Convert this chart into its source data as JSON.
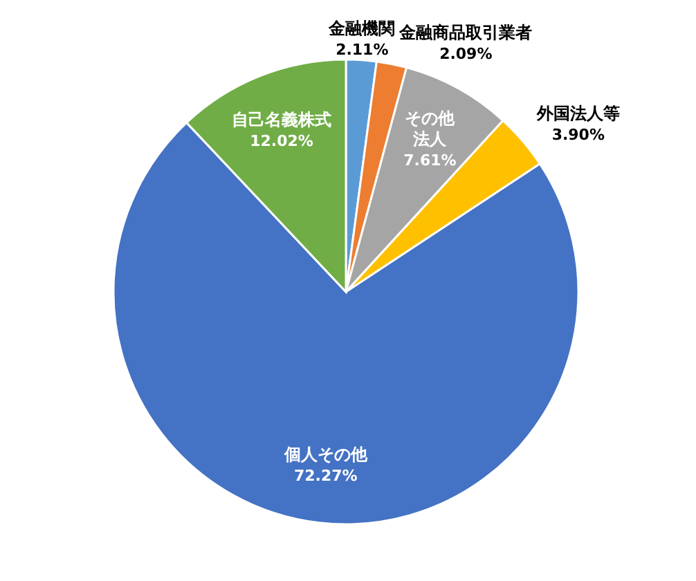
{
  "chart_data": {
    "type": "pie",
    "categories": [
      "金融機関",
      "金融商品取引業者",
      "その他法人",
      "外国法人等",
      "個人その他",
      "自己名義株式"
    ],
    "values": [
      2.11,
      2.09,
      7.61,
      3.9,
      72.27,
      12.02
    ],
    "colors": [
      "#5b9bd5",
      "#ed7d31",
      "#a5a5a5",
      "#ffc000",
      "#4472c4",
      "#70ad47"
    ],
    "value_labels": [
      "2.11%",
      "2.09%",
      "7.61%",
      "3.90%",
      "72.27%",
      "12.02%"
    ]
  }
}
